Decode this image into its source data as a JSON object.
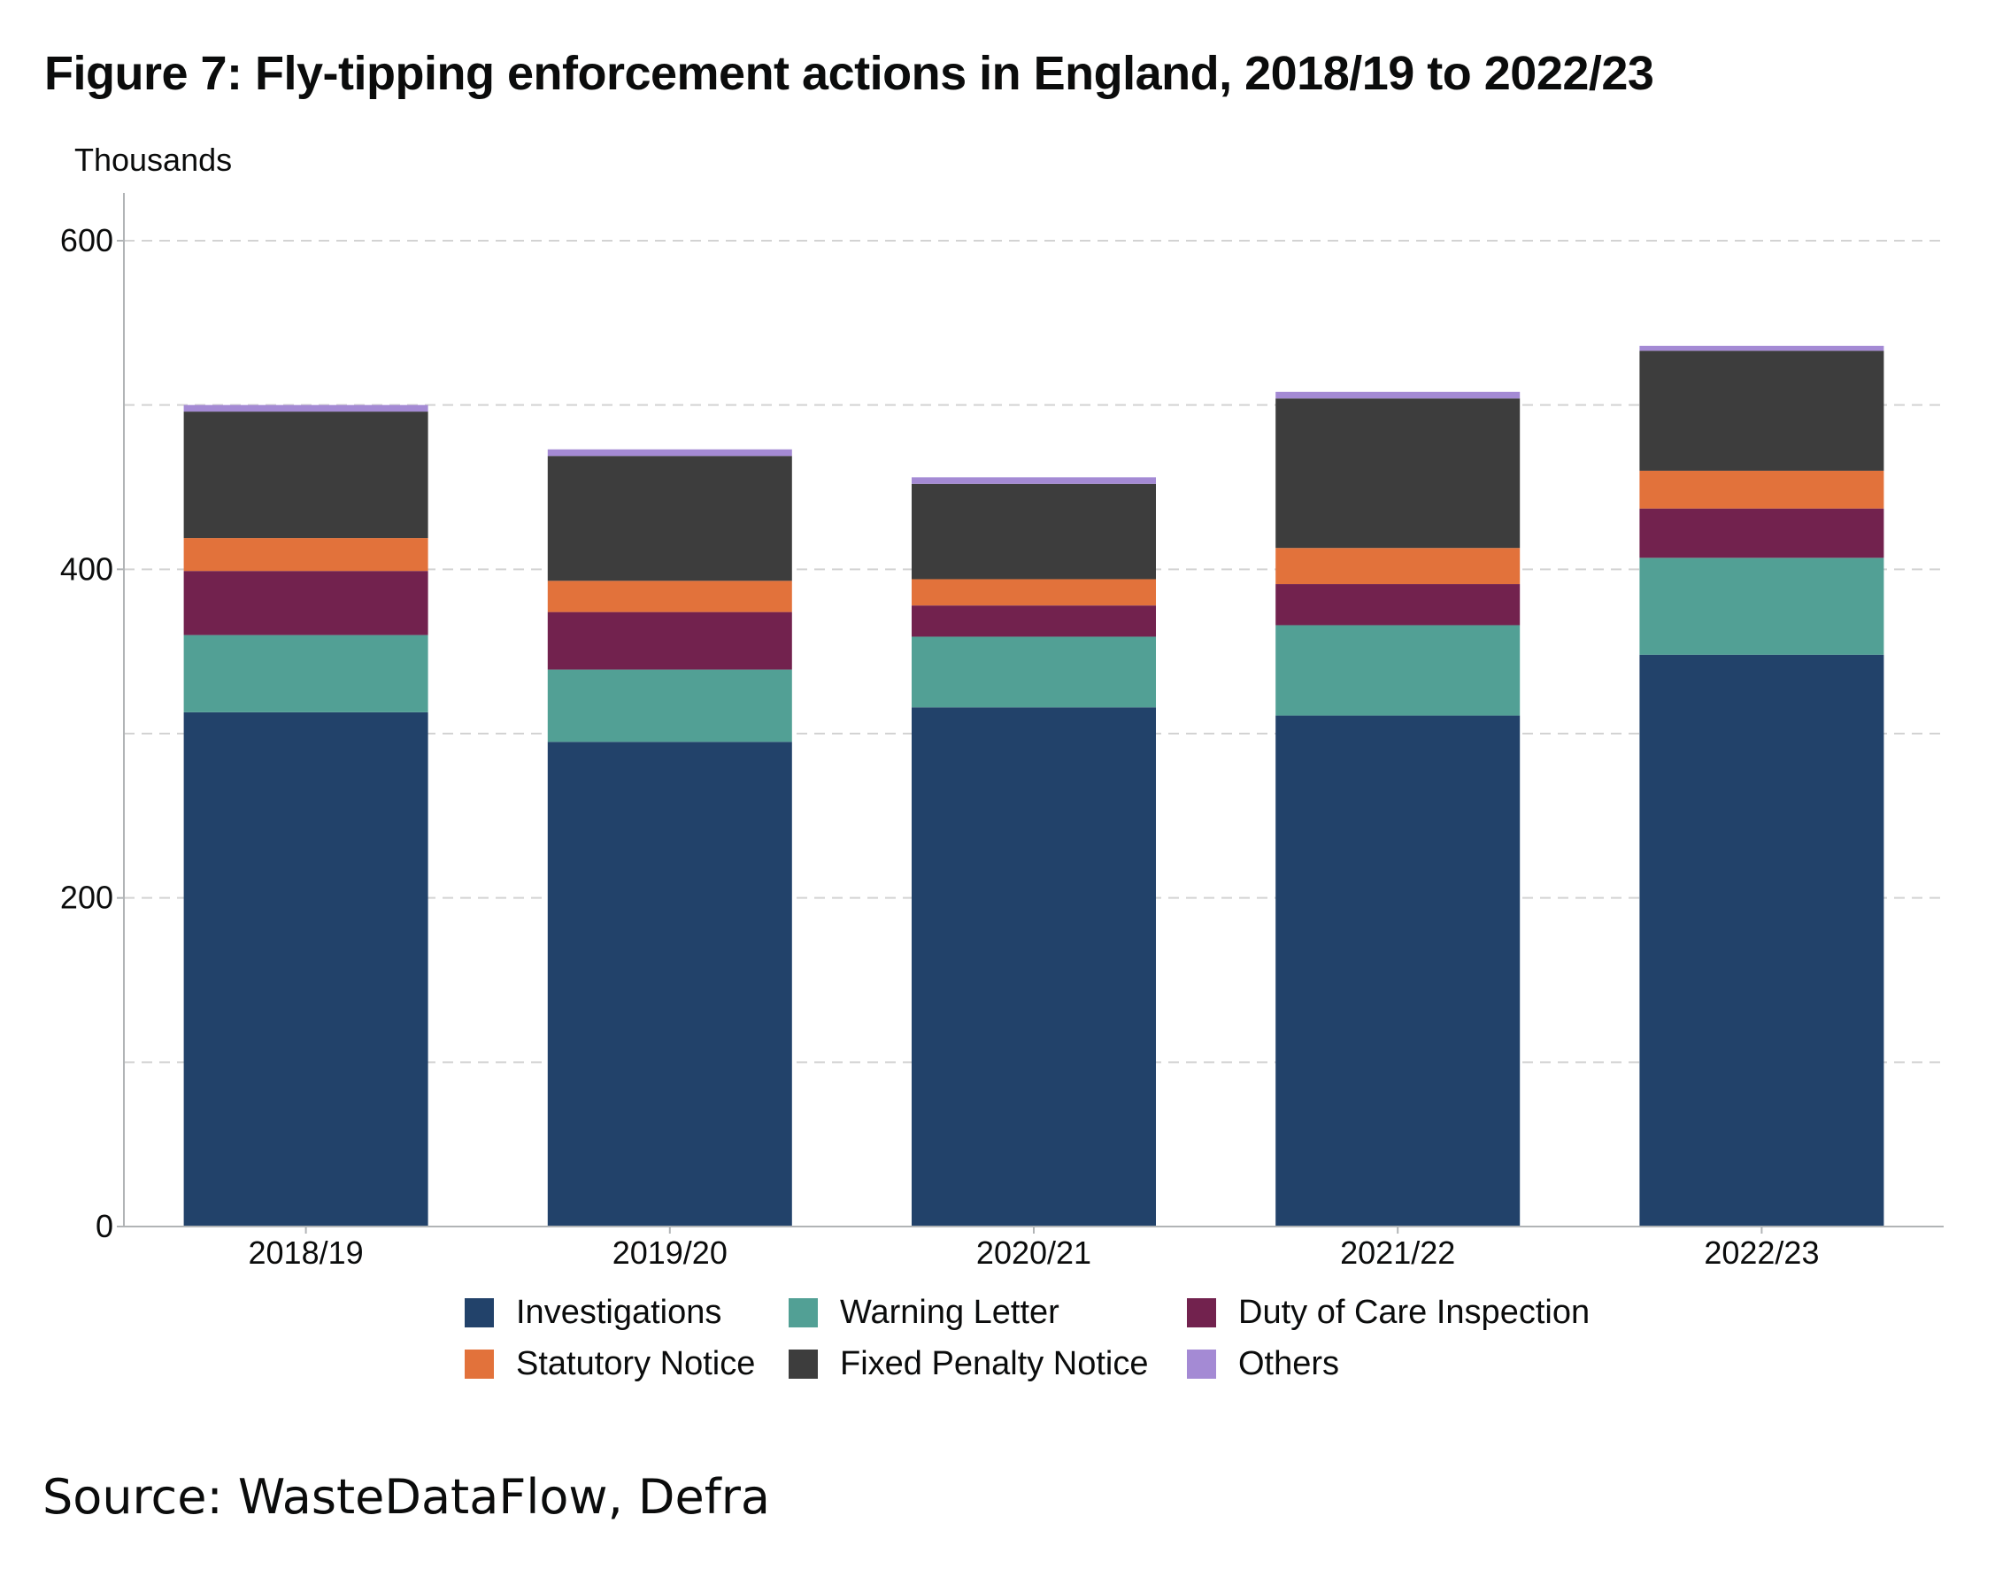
{
  "title": "Figure 7: Fly-tipping enforcement actions in England, 2018/19 to 2022/23",
  "source": "Source: WasteDataFlow, Defra",
  "chart_data": {
    "type": "bar",
    "stacked": true,
    "ylabel": "Thousands",
    "xlabel": "",
    "ylim": [
      0,
      630
    ],
    "yticks": [
      0,
      200,
      400,
      600
    ],
    "grid_lines": [
      100,
      200,
      300,
      400,
      500,
      600
    ],
    "grid": true,
    "legend_position": "bottom",
    "categories": [
      "2018/19",
      "2019/20",
      "2020/21",
      "2021/22",
      "2022/23"
    ],
    "series": [
      {
        "name": "Investigations",
        "color": "#22426a",
        "values": [
          313,
          295,
          316,
          311,
          348
        ]
      },
      {
        "name": "Warning Letter",
        "color": "#52a095",
        "values": [
          47,
          44,
          43,
          55,
          59
        ]
      },
      {
        "name": "Duty of Care Inspection",
        "color": "#72224e",
        "values": [
          39,
          35,
          19,
          25,
          30
        ]
      },
      {
        "name": "Statutory Notice",
        "color": "#e2723b",
        "values": [
          20,
          19,
          16,
          22,
          23
        ]
      },
      {
        "name": "Fixed Penalty Notice",
        "color": "#3d3d3d",
        "values": [
          77,
          76,
          58,
          91,
          73
        ]
      },
      {
        "name": "Others",
        "color": "#a48ad4",
        "values": [
          4,
          4,
          4,
          4,
          3
        ]
      }
    ]
  }
}
